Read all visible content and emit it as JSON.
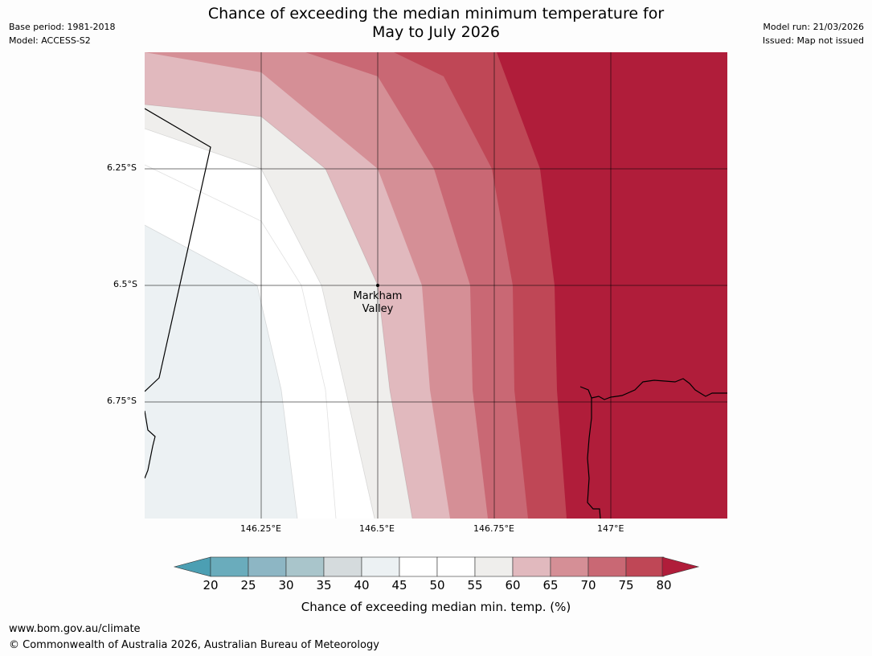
{
  "header": {
    "base_period": "Base period: 1981-2018",
    "model": "Model: ACCESS-S2",
    "model_run": "Model run: 21/03/2026",
    "issued": "Issued: Map not issued",
    "title_line1": "Chance of exceeding the median minimum temperature for",
    "title_line2": "May to July 2026"
  },
  "map": {
    "lat_labels": [
      "6.25°S",
      "6.5°S",
      "6.75°S"
    ],
    "lon_labels": [
      "146.25°E",
      "146.5°E",
      "146.75°E",
      "147°E"
    ],
    "place": {
      "name_line1": "Markham",
      "name_line2": "Valley"
    }
  },
  "colorbar": {
    "ticks": [
      "20",
      "25",
      "30",
      "35",
      "40",
      "45",
      "50",
      "55",
      "60",
      "65",
      "70",
      "75",
      "80"
    ],
    "colors": [
      "#6aacbc",
      "#8db6c4",
      "#a9c5cb",
      "#d5dbdd",
      "#ecf1f3",
      "#ffffff",
      "#ffffff",
      "#efeeec",
      "#e1b9be",
      "#d58f96",
      "#c96874",
      "#bf4756"
    ],
    "under_color": "#4c9fb3",
    "over_color": "#b01d3a",
    "label": "Chance of exceeding median min. temp. (%)"
  },
  "footer": {
    "url": "www.bom.gov.au/climate",
    "copyright": "© Commonwealth of Australia 2026, Australian Bureau of Meteorology"
  }
}
